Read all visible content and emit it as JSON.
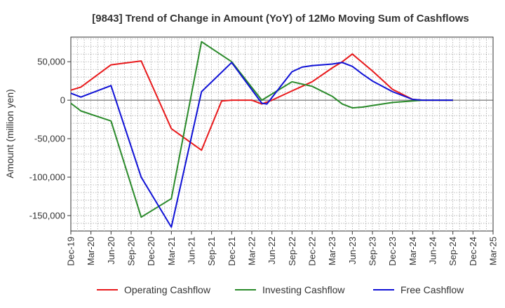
{
  "chart_data": {
    "type": "line",
    "title": "[9843]  Trend of Change in Amount (YoY) of 12Mo Moving Sum of Cashflows",
    "xlabel": "",
    "ylabel": "Amount (million yen)",
    "ylim": [
      -170000,
      82000
    ],
    "yticks": [
      50000,
      0,
      -50000,
      -100000,
      -150000
    ],
    "ytick_labels": [
      "50,000",
      "0",
      "-50,000",
      "-100,000",
      "-150,000"
    ],
    "x_tick_labels": [
      "Dec-19",
      "Mar-20",
      "Jun-20",
      "Sep-20",
      "Dec-20",
      "Mar-21",
      "Jun-21",
      "Sep-21",
      "Dec-21",
      "Mar-22",
      "Jun-22",
      "Sep-22",
      "Dec-22",
      "Mar-23",
      "Jun-23",
      "Sep-23",
      "Dec-23",
      "Mar-24",
      "Jun-24",
      "Sep-24",
      "Dec-24",
      "Mar-25"
    ],
    "x_range_quarters": [
      0,
      21
    ],
    "grid": true,
    "legend_position": "bottom",
    "series": [
      {
        "name": "Operating Cashflow",
        "color": "#e8191b",
        "x": [
          0,
          1,
          4,
          7,
          10,
          13,
          15,
          16,
          18,
          19,
          20,
          22,
          24,
          26,
          27,
          28,
          30,
          32,
          34,
          35,
          36,
          38
        ],
        "values": [
          13000,
          17000,
          46000,
          51000,
          -37000,
          -65000,
          -1000,
          0,
          0,
          -5000,
          0,
          12000,
          24000,
          42000,
          50000,
          60000,
          38000,
          14000,
          1000,
          0,
          0,
          0
        ]
      },
      {
        "name": "Investing Cashflow",
        "color": "#2a8a2a",
        "x": [
          0,
          1,
          4,
          7,
          10,
          13,
          16,
          19,
          22,
          24,
          26,
          27,
          28,
          29,
          30,
          32,
          34,
          35,
          36,
          38
        ],
        "values": [
          -4000,
          -14000,
          -27000,
          -152000,
          -128000,
          76000,
          50000,
          0,
          24000,
          18000,
          5000,
          -5000,
          -10000,
          -9000,
          -7000,
          -3000,
          -1000,
          0,
          0,
          0
        ]
      },
      {
        "name": "Free Cashflow",
        "color": "#0f11d6",
        "x": [
          0,
          1,
          4,
          7,
          10,
          13,
          16,
          19,
          19.5,
          22,
          23,
          24,
          26,
          27,
          28,
          29,
          30,
          32,
          34,
          35,
          36,
          38
        ],
        "values": [
          9000,
          4000,
          19000,
          -100000,
          -165000,
          11000,
          49000,
          -4000,
          -5000,
          37000,
          43000,
          45000,
          47000,
          49000,
          44000,
          34000,
          25000,
          11000,
          1000,
          0,
          0,
          0
        ]
      }
    ]
  }
}
